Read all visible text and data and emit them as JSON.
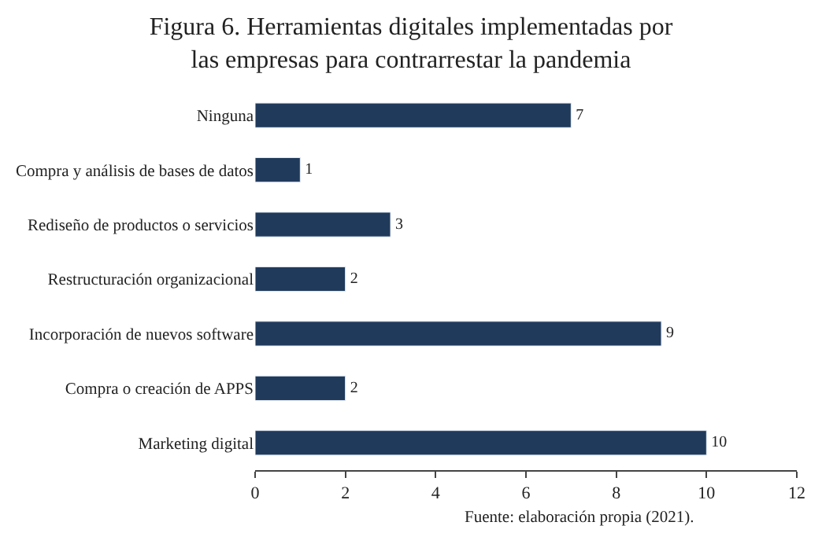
{
  "chart_data": {
    "type": "bar",
    "orientation": "horizontal",
    "title": "Figura 6. Herramientas digitales implementadas por\nlas empresas para contrarrestar la pandemia",
    "categories": [
      "Ninguna",
      "Compra y análisis de bases de datos",
      "Rediseño de productos o servicios",
      "Restructuración organizacional",
      "Incorporación de nuevos software",
      "Compra o creación de APPS",
      "Marketing digital"
    ],
    "values": [
      7,
      1,
      3,
      2,
      9,
      2,
      10
    ],
    "color": "#203a5c",
    "xlim": [
      0,
      12
    ],
    "xticks": [
      0,
      2,
      4,
      6,
      8,
      10,
      12
    ],
    "data_labels": true,
    "legend": false,
    "annotations": [
      "Fuente: elaboración propia (2021)."
    ]
  }
}
